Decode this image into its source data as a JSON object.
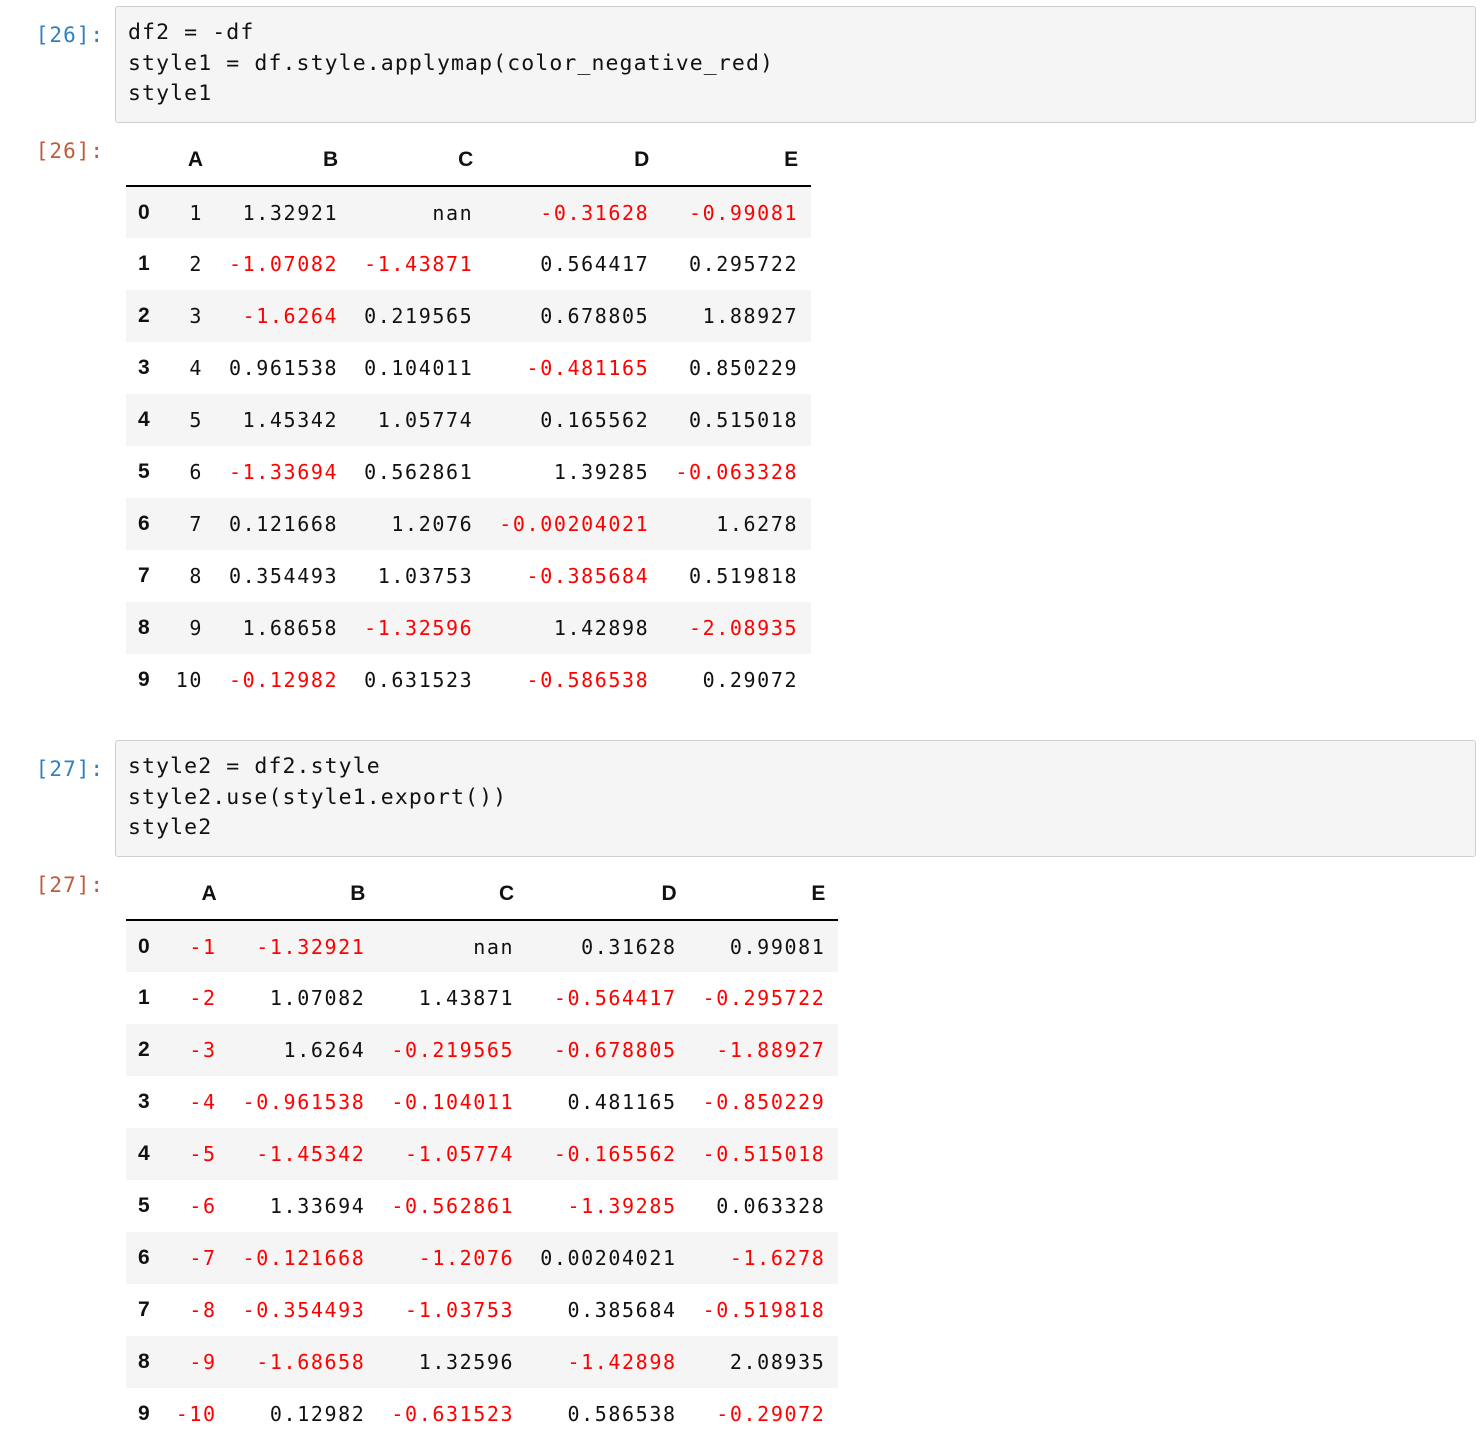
{
  "colors": {
    "in_prompt": "#307fc1",
    "out_prompt": "#bf5b3d",
    "negative": "#ff0000",
    "code_bg": "#f5f5f5",
    "row_stripe": "#f5f5f5"
  },
  "cells": [
    {
      "in_prompt": "[26]:",
      "out_prompt": "[26]:",
      "code": [
        "df2 = -df",
        "style1 = df.style.applymap(color_negative_red)",
        "style1"
      ],
      "table": {
        "columns": [
          "A",
          "B",
          "C",
          "D",
          "E"
        ],
        "index": [
          "0",
          "1",
          "2",
          "3",
          "4",
          "5",
          "6",
          "7",
          "8",
          "9"
        ],
        "rows": [
          [
            "1",
            "1.32921",
            "nan",
            "-0.31628",
            "-0.99081"
          ],
          [
            "2",
            "-1.07082",
            "-1.43871",
            "0.564417",
            "0.295722"
          ],
          [
            "3",
            "-1.6264",
            "0.219565",
            "0.678805",
            "1.88927"
          ],
          [
            "4",
            "0.961538",
            "0.104011",
            "-0.481165",
            "0.850229"
          ],
          [
            "5",
            "1.45342",
            "1.05774",
            "0.165562",
            "0.515018"
          ],
          [
            "6",
            "-1.33694",
            "0.562861",
            "1.39285",
            "-0.063328"
          ],
          [
            "7",
            "0.121668",
            "1.2076",
            "-0.00204021",
            "1.6278"
          ],
          [
            "8",
            "0.354493",
            "1.03753",
            "-0.385684",
            "0.519818"
          ],
          [
            "9",
            "1.68658",
            "-1.32596",
            "1.42898",
            "-2.08935"
          ],
          [
            "10",
            "-0.12982",
            "0.631523",
            "-0.586538",
            "0.29072"
          ]
        ]
      }
    },
    {
      "in_prompt": "[27]:",
      "out_prompt": "[27]:",
      "code": [
        "style2 = df2.style",
        "style2.use(style1.export())",
        "style2"
      ],
      "table": {
        "columns": [
          "A",
          "B",
          "C",
          "D",
          "E"
        ],
        "index": [
          "0",
          "1",
          "2",
          "3",
          "4",
          "5",
          "6",
          "7",
          "8",
          "9"
        ],
        "rows": [
          [
            "-1",
            "-1.32921",
            "nan",
            "0.31628",
            "0.99081"
          ],
          [
            "-2",
            "1.07082",
            "1.43871",
            "-0.564417",
            "-0.295722"
          ],
          [
            "-3",
            "1.6264",
            "-0.219565",
            "-0.678805",
            "-1.88927"
          ],
          [
            "-4",
            "-0.961538",
            "-0.104011",
            "0.481165",
            "-0.850229"
          ],
          [
            "-5",
            "-1.45342",
            "-1.05774",
            "-0.165562",
            "-0.515018"
          ],
          [
            "-6",
            "1.33694",
            "-0.562861",
            "-1.39285",
            "0.063328"
          ],
          [
            "-7",
            "-0.121668",
            "-1.2076",
            "0.00204021",
            "-1.6278"
          ],
          [
            "-8",
            "-0.354493",
            "-1.03753",
            "0.385684",
            "-0.519818"
          ],
          [
            "-9",
            "-1.68658",
            "1.32596",
            "-1.42898",
            "2.08935"
          ],
          [
            "-10",
            "0.12982",
            "-0.631523",
            "0.586538",
            "-0.29072"
          ]
        ]
      }
    }
  ]
}
